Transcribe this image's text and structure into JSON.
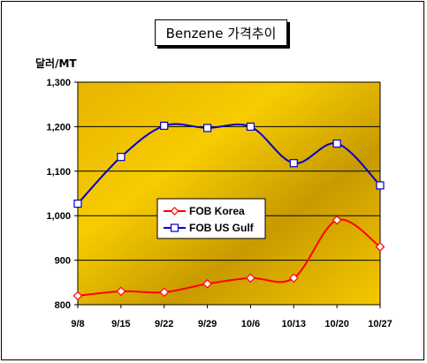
{
  "chart_data": {
    "type": "line",
    "title": "Benzene 가격추이",
    "ylabel": "달러/MT",
    "xlabel": "",
    "categories": [
      "9/8",
      "9/15",
      "9/22",
      "9/29",
      "10/6",
      "10/13",
      "10/20",
      "10/27"
    ],
    "ylim": [
      800,
      1300
    ],
    "yticks": [
      "800",
      "900",
      "1,000",
      "1,100",
      "1,200",
      "1,300"
    ],
    "grid": "horizontal",
    "legend_position": "center-left",
    "series": [
      {
        "name": "FOB Korea",
        "values": [
          820,
          830,
          828,
          847,
          860,
          860,
          990,
          930
        ],
        "color": "#ff0000",
        "marker": "diamond"
      },
      {
        "name": "FOB US Gulf",
        "values": [
          1027,
          1132,
          1202,
          1197,
          1200,
          1118,
          1162,
          1068
        ],
        "color": "#0000cc",
        "marker": "square"
      }
    ],
    "plot_background": "#f5c400"
  }
}
